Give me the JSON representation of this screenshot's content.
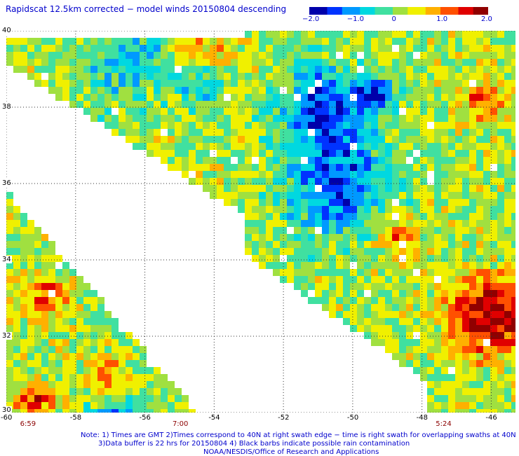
{
  "title": "Rapidscat 12.5km corrected − model winds 20150804 descending",
  "colorbar": {
    "labels": [
      "−2.0",
      "−1.0",
      "0",
      "1.0",
      "2.0"
    ],
    "values": [
      -2.0,
      -1.0,
      0,
      1.0,
      2.0
    ],
    "colors": [
      "#0000aa",
      "#0033ff",
      "#0099ff",
      "#00d8e0",
      "#40e0a0",
      "#a0e040",
      "#f0f000",
      "#ffb000",
      "#ff5000",
      "#e00000",
      "#900000"
    ]
  },
  "map": {
    "lat_ticks": [
      "40",
      "38",
      "36",
      "34",
      "32",
      "30"
    ],
    "lat_values": [
      40,
      38,
      36,
      34,
      32,
      30
    ],
    "lon_ticks": [
      "-60",
      "-58",
      "-56",
      "-54",
      "-52",
      "-50",
      "-48",
      "-46"
    ],
    "lon_values": [
      -60,
      -58,
      -56,
      -54,
      -52,
      -50,
      -48,
      -46
    ],
    "lat_range": [
      30,
      40
    ],
    "lon_range": [
      -60,
      -45.3
    ],
    "grid": "dotted",
    "swath_times": [
      "6:59",
      "7:00",
      "5:24"
    ],
    "swath_time_lons": [
      -59.4,
      -55,
      -47.4
    ]
  },
  "notes": {
    "line1": "Note: 1) Times are GMT 2)Times correspond to 40N at right swath edge − time is right swath for overlapping swaths at 40N",
    "line2": "3)Data buffer is 22 hrs for 20150804 4) Black barbs indicate possible rain contamination",
    "line3": "NOAA/NESDIS/Office of Research and Applications"
  }
}
